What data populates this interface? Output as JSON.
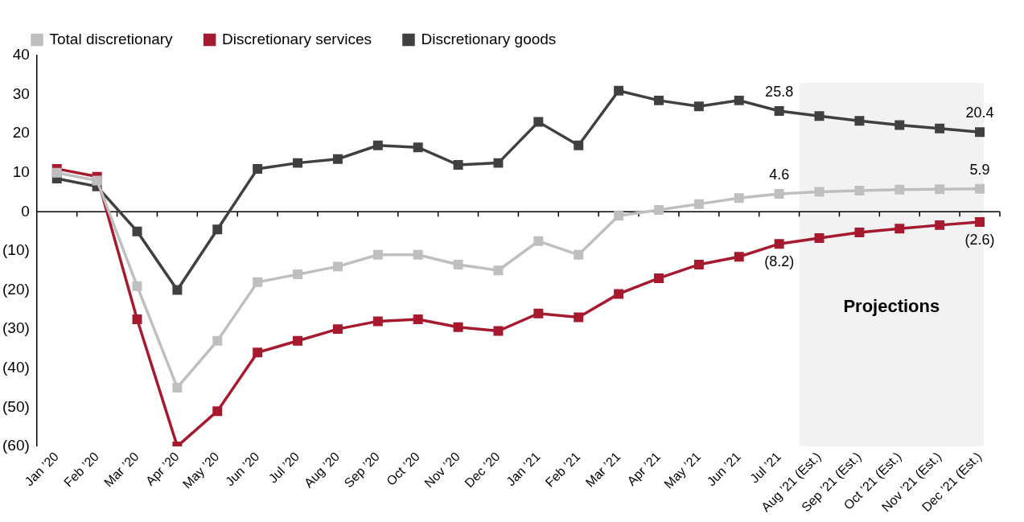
{
  "chart_data": {
    "type": "line",
    "categories": [
      "Jan ’20",
      "Feb ’20",
      "Mar ’20",
      "Apr ’20",
      "May ’20",
      "Jun ’20",
      "Jul ’20",
      "Aug ’20",
      "Sep ’20",
      "Oct ’20",
      "Nov ’20",
      "Dec ’20",
      "Jan ’21",
      "Feb ’21",
      "Mar ’21",
      "Apr ’21",
      "May ’21",
      "Jun ’21",
      "Jul ’21",
      "Aug ’21 (Est.)",
      "Sep ’21 (Est.)",
      "Oct ’21 (Est.)",
      "Nov ’21 (Est.)",
      "Dec ’21 (Est.)"
    ],
    "series": [
      {
        "name": "Total discretionary",
        "color": "#bfbfbf",
        "marker": "square",
        "values": [
          10,
          8,
          -19,
          -45,
          -33,
          -18,
          -16,
          -14,
          -11,
          -11,
          -13.5,
          -15,
          -7.5,
          -11,
          -1,
          0.5,
          2,
          3.5,
          4.6,
          5.1,
          5.4,
          5.7,
          5.8,
          5.9
        ]
      },
      {
        "name": "Discretionary services",
        "color": "#a6192e",
        "marker": "square",
        "values": [
          11,
          9,
          -27.5,
          -60,
          -51,
          -36,
          -33,
          -30,
          -28,
          -27.5,
          -29.5,
          -30.5,
          -26,
          -27,
          -21,
          -17,
          -13.5,
          -11.5,
          -8.2,
          -6.7,
          -5.3,
          -4.3,
          -3.4,
          -2.6
        ]
      },
      {
        "name": "Discretionary goods",
        "color": "#404040",
        "marker": "square",
        "values": [
          8.5,
          6.5,
          -5,
          -20,
          -4.5,
          11,
          12.5,
          13.5,
          17,
          16.5,
          12,
          12.5,
          23,
          17,
          31,
          28.5,
          27,
          28.5,
          25.8,
          24.5,
          23.3,
          22.2,
          21.3,
          20.4
        ]
      }
    ],
    "ylim": [
      -60,
      40
    ],
    "yticks": [
      {
        "value": -60,
        "label": "(60)"
      },
      {
        "value": -50,
        "label": "(50)"
      },
      {
        "value": -40,
        "label": "(40)"
      },
      {
        "value": -30,
        "label": "(30)"
      },
      {
        "value": -20,
        "label": "(20)"
      },
      {
        "value": -10,
        "label": "(10)"
      },
      0,
      10,
      20,
      30,
      40
    ],
    "grid": false,
    "legend": "top",
    "annotations": [
      {
        "text": "25.8",
        "category": "Jul ’21",
        "value": 25.8
      },
      {
        "text": "20.4",
        "category": "Dec ’21 (Est.)",
        "value": 20.4
      },
      {
        "text": "4.6",
        "category": "Jul ’21",
        "value": 4.6
      },
      {
        "text": "5.9",
        "category": "Dec ’21 (Est.)",
        "value": 5.9
      },
      {
        "text": "(8.2)",
        "category": "Jul ’21",
        "value": -8.2
      },
      {
        "text": "(2.6)",
        "category": "Dec ’21 (Est.)",
        "value": -2.6
      },
      {
        "text": "Projections",
        "from": "Aug ’21 (Est.)",
        "to": "Dec ’21 (Est.)"
      }
    ]
  }
}
